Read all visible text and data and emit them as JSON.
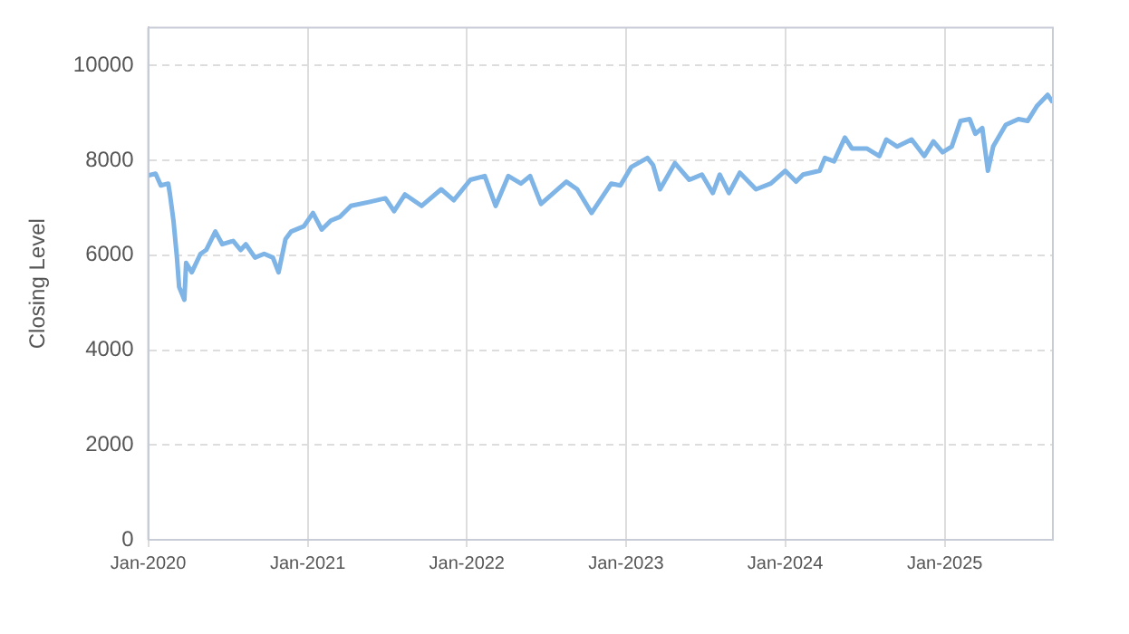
{
  "chart_data": {
    "type": "line",
    "ylabel": "Closing Level",
    "x": [
      "2020-01-01",
      "2020-01-18",
      "2020-01-30",
      "2020-02-16",
      "2020-02-20",
      "2020-02-28",
      "2020-03-07",
      "2020-03-12",
      "2020-03-24",
      "2020-03-28",
      "2020-04-10",
      "2020-04-30",
      "2020-05-13",
      "2020-06-03",
      "2020-06-19",
      "2020-07-14",
      "2020-07-31",
      "2020-08-12",
      "2020-09-02",
      "2020-09-23",
      "2020-10-13",
      "2020-10-26",
      "2020-11-11",
      "2020-11-24",
      "2020-12-23",
      "2021-01-13",
      "2021-02-02",
      "2021-02-23",
      "2021-03-16",
      "2021-04-10",
      "2021-05-21",
      "2021-06-28",
      "2021-07-18",
      "2021-08-12",
      "2021-09-19",
      "2021-11-03",
      "2021-12-02",
      "2022-01-09",
      "2022-02-11",
      "2022-03-08",
      "2022-04-06",
      "2022-05-05",
      "2022-05-26",
      "2022-06-20",
      "2022-08-17",
      "2022-09-11",
      "2022-10-14",
      "2022-11-28",
      "2022-12-19",
      "2023-01-13",
      "2023-02-19",
      "2023-03-04",
      "2023-03-20",
      "2023-04-23",
      "2023-05-26",
      "2023-06-24",
      "2023-07-19",
      "2023-08-04",
      "2023-08-25",
      "2023-09-19",
      "2023-10-26",
      "2023-11-29",
      "2024-01-01",
      "2024-01-26",
      "2024-02-11",
      "2024-03-20",
      "2024-04-01",
      "2024-04-22",
      "2024-05-17",
      "2024-06-02",
      "2024-07-06",
      "2024-08-04",
      "2024-08-20",
      "2024-09-14",
      "2024-10-17",
      "2024-11-15",
      "2024-12-06",
      "2024-12-27",
      "2025-01-17",
      "2025-02-06",
      "2025-02-27",
      "2025-03-12",
      "2025-03-28",
      "2025-04-10",
      "2025-04-22",
      "2025-05-21",
      "2025-06-19",
      "2025-07-10",
      "2025-07-31",
      "2025-08-25",
      "2025-09-06"
    ],
    "series": [
      {
        "color": "#7eb4e6",
        "values": [
          7680,
          7720,
          7470,
          7510,
          7280,
          6730,
          5950,
          5330,
          5060,
          5840,
          5640,
          6030,
          6110,
          6500,
          6230,
          6300,
          6110,
          6230,
          5950,
          6030,
          5950,
          5640,
          6340,
          6500,
          6610,
          6890,
          6540,
          6730,
          6810,
          7040,
          7120,
          7200,
          6930,
          7280,
          7040,
          7390,
          7160,
          7590,
          7670,
          7040,
          7670,
          7510,
          7670,
          7080,
          7550,
          7390,
          6890,
          7510,
          7470,
          7860,
          8050,
          7900,
          7390,
          7940,
          7590,
          7700,
          7310,
          7700,
          7310,
          7740,
          7390,
          7510,
          7780,
          7550,
          7700,
          7780,
          8050,
          7980,
          8480,
          8250,
          8250,
          8090,
          8440,
          8290,
          8440,
          8090,
          8400,
          8170,
          8290,
          8830,
          8870,
          8560,
          8680,
          7780,
          8290,
          8750,
          8870,
          8830,
          9140,
          9380,
          9220
        ]
      }
    ],
    "xlim": [
      "2020-01-01",
      "2025-09-06"
    ],
    "xticks": [
      {
        "value": "2020-01-01",
        "label": "Jan-2020"
      },
      {
        "value": "2021-01-01",
        "label": "Jan-2021"
      },
      {
        "value": "2022-01-01",
        "label": "Jan-2022"
      },
      {
        "value": "2023-01-01",
        "label": "Jan-2023"
      },
      {
        "value": "2024-01-01",
        "label": "Jan-2024"
      },
      {
        "value": "2025-01-01",
        "label": "Jan-2025"
      }
    ],
    "ylim": [
      0,
      10800
    ],
    "yticks": [
      0,
      2000,
      4000,
      6000,
      8000,
      10000
    ],
    "grid": true,
    "marker": "none",
    "line_style": "solid"
  }
}
